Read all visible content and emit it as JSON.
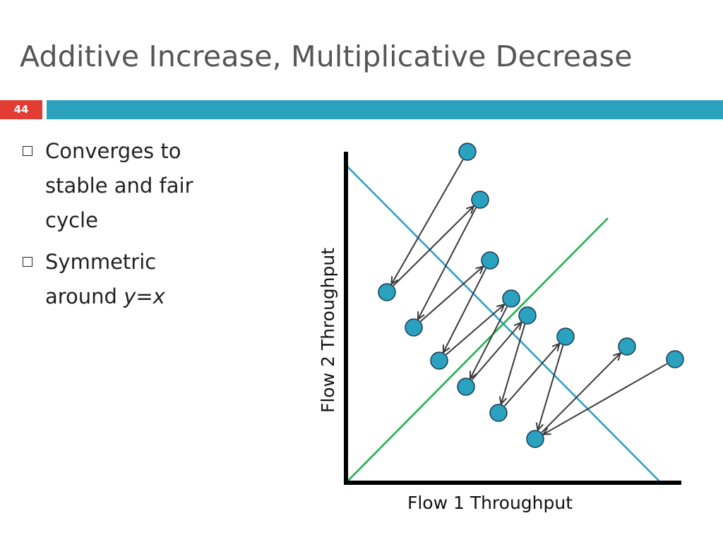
{
  "slide": {
    "title": "Additive Increase, Multiplicative Decrease",
    "number": "44"
  },
  "bullets": [
    {
      "text": "Converges to stable and fair cycle"
    },
    {
      "text_before": "Symmetric around ",
      "text_italic": "y=x"
    }
  ],
  "diagram": {
    "x_axis_label": "Flow 1 Throughput",
    "y_axis_label": "Flow 2 Throughput",
    "lines": {
      "efficiency_line": "x + y = capacity",
      "fairness_line": "y = x"
    },
    "colors": {
      "efficiency_line": "#2c9dc2",
      "fairness_line": "#19b04b",
      "points_fill": "#2aa1bf",
      "points_stroke": "#1b3b57",
      "arrows": "#3a3a3a",
      "axes": "#000000"
    },
    "point_count": 14,
    "arrow_count": 13
  }
}
